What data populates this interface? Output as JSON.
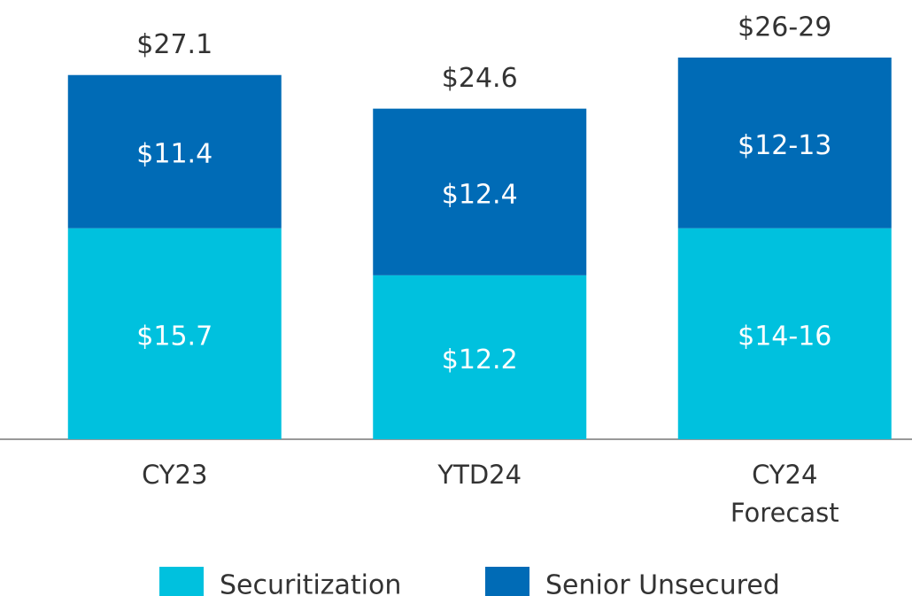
{
  "chart_data": {
    "type": "stacked_bar",
    "categories": [
      "CY23",
      "YTD24",
      "CY24 Forecast"
    ],
    "series": [
      {
        "name": "Securitization",
        "color": "#00c1de",
        "values": [
          15.7,
          12.2,
          15.7
        ],
        "value_labels": [
          "$15.7",
          "$12.2",
          "$14-16"
        ]
      },
      {
        "name": "Senior Unsecured",
        "color": "#006bb6",
        "values": [
          11.4,
          12.4,
          12.7
        ],
        "value_labels": [
          "$11.4",
          "$12.4",
          "$12-13"
        ]
      }
    ],
    "total_labels": [
      "$27.1",
      "$24.6",
      "$26-29"
    ],
    "legend": "bottom"
  }
}
